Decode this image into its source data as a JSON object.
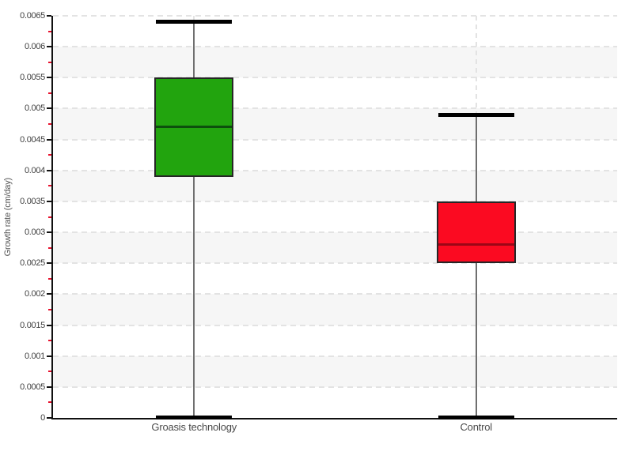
{
  "chart_data": {
    "type": "boxplot",
    "title": "",
    "xlabel": "",
    "ylabel": "Growth rate (cm/day)",
    "ylim": [
      0,
      0.0065
    ],
    "y_major_step": 0.0005,
    "y_minor_step": 0.00025,
    "y_tick_labels": [
      "0",
      "0.0005",
      "0.001",
      "0.0015",
      "0.002",
      "0.0025",
      "0.003",
      "0.0035",
      "0.004",
      "0.0045",
      "0.005",
      "0.0055",
      "0.006",
      "0.0065"
    ],
    "grid": "horizontal dashed lines at every major tick, alternating white/gray horizontal bands, dashed vertical line at each category center",
    "legend": "none",
    "categories": [
      "Groasis technology",
      "Control"
    ],
    "series": [
      {
        "name": "Groasis technology",
        "min": 0,
        "q1": 0.0039,
        "median": 0.0047,
        "q3": 0.0055,
        "max": 0.0064,
        "fill": "#22a40e",
        "median_color": "#0d4f0d"
      },
      {
        "name": "Control",
        "min": 0,
        "q1": 0.0025,
        "median": 0.0028,
        "q3": 0.0035,
        "max": 0.0049,
        "fill": "#fb0a21",
        "median_color": "#9c0616"
      }
    ]
  },
  "colors": {
    "background": "#ffffff",
    "band_gray": "#f6f6f6",
    "gridline": "#e3e3e3",
    "axis": "#111111",
    "major_tick": "#111111",
    "minor_tick": "#e8112d",
    "whisker": "#6f6f6f",
    "cap": "#000000",
    "box_border": "#262626",
    "tick_label_text": "#3f3f3f",
    "category_label_text": "#4a4a4a",
    "y_title_text": "#555555"
  }
}
